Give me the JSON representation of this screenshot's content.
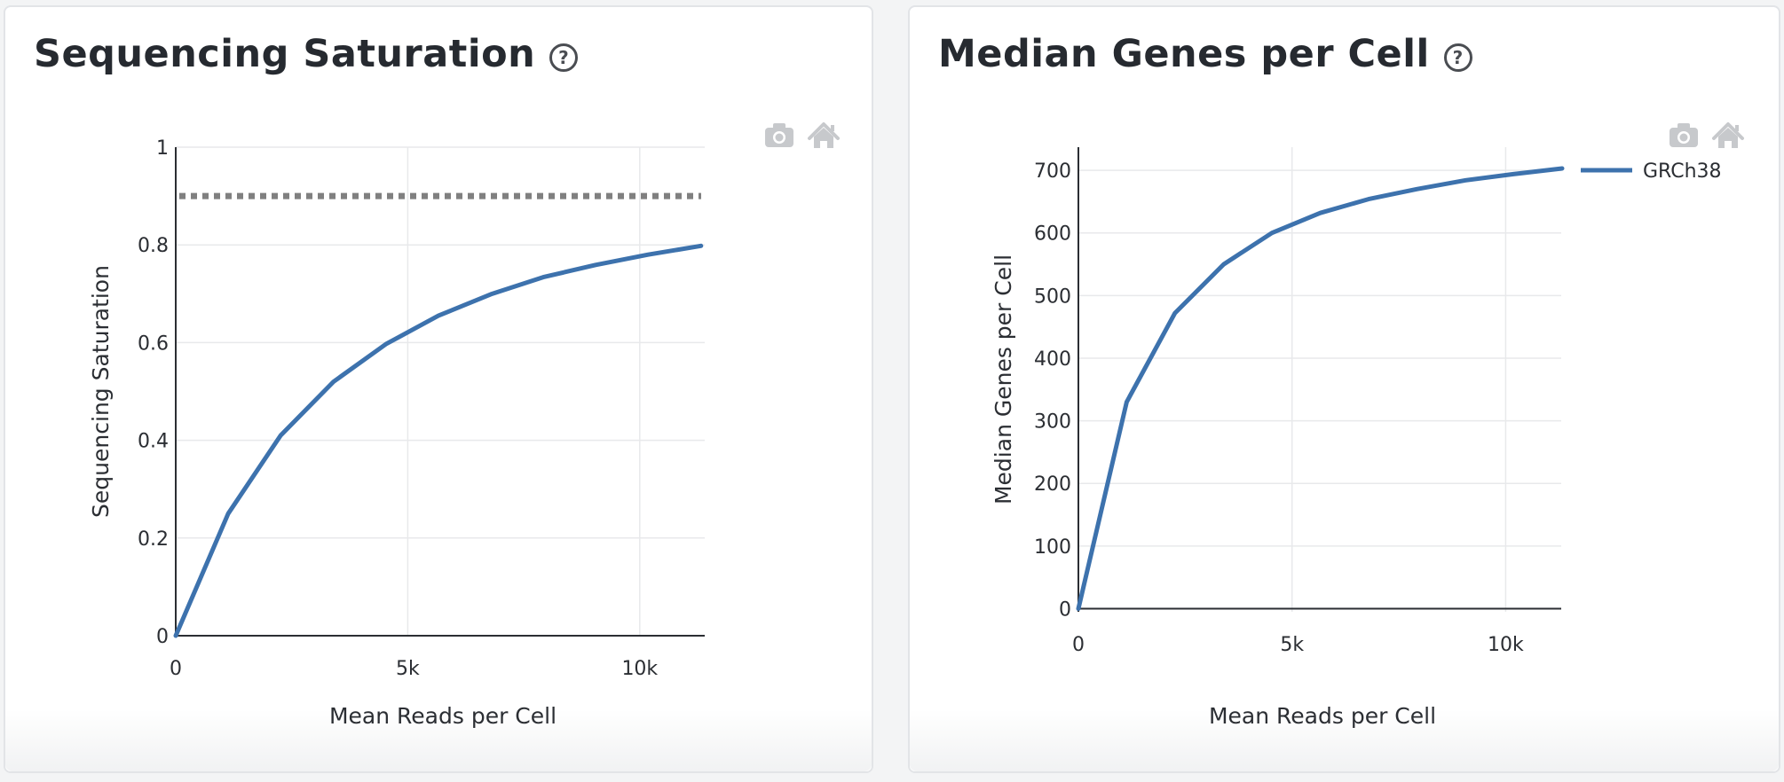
{
  "charts": [
    {
      "id": "left",
      "title": "Sequencing Saturation",
      "help_icon": "question-circle-icon",
      "toolbar": [
        "camera-icon",
        "home-icon"
      ],
      "chart_data": {
        "type": "line",
        "xlabel": "Mean Reads per Cell",
        "ylabel": "Sequencing Saturation",
        "xlim": [
          0,
          11400
        ],
        "ylim": [
          0,
          1
        ],
        "xticks": [
          0,
          5000,
          10000
        ],
        "xtick_labels": [
          "0",
          "5k",
          "10k"
        ],
        "yticks": [
          0,
          0.2,
          0.4,
          0.6,
          0.8,
          1
        ],
        "ytick_labels": [
          "0",
          "0.2",
          "0.4",
          "0.6",
          "0.8",
          "1"
        ],
        "grid": true,
        "legend": false,
        "reference_line": {
          "y": 0.9,
          "style": "dotted",
          "color": "#808080"
        },
        "series": [
          {
            "color": "#3d72ad",
            "x": [
              0,
              1130,
              2260,
              3400,
              4530,
              5660,
              6790,
              7920,
              9050,
              10180,
              11320
            ],
            "y": [
              0,
              0.25,
              0.41,
              0.52,
              0.597,
              0.655,
              0.699,
              0.734,
              0.759,
              0.78,
              0.798
            ]
          }
        ]
      }
    },
    {
      "id": "right",
      "title": "Median Genes per Cell",
      "help_icon": "question-circle-icon",
      "toolbar": [
        "camera-icon",
        "home-icon"
      ],
      "chart_data": {
        "type": "line",
        "xlabel": "Mean Reads per Cell",
        "ylabel": "Median Genes per Cell",
        "xlim": [
          0,
          11300
        ],
        "ylim": [
          -5,
          737
        ],
        "xticks": [
          0,
          5000,
          10000
        ],
        "xtick_labels": [
          "0",
          "5k",
          "10k"
        ],
        "yticks": [
          0,
          100,
          200,
          300,
          400,
          500,
          600,
          700
        ],
        "ytick_labels": [
          "0",
          "100",
          "200",
          "300",
          "400",
          "500",
          "600",
          "700"
        ],
        "grid": true,
        "legend": "right",
        "series": [
          {
            "name": "GRCh38",
            "color": "#3d72ad",
            "x": [
              0,
              1130,
              2260,
              3400,
              4530,
              5660,
              6790,
              7920,
              9050,
              10180,
              11320
            ],
            "y": [
              0,
              330,
              472,
              550,
              600,
              632,
              654,
              670,
              684,
              694,
              703
            ]
          }
        ]
      }
    }
  ]
}
